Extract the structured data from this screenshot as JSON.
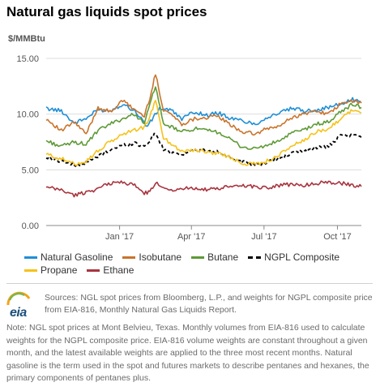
{
  "title": "Natural gas liquids spot prices",
  "unit_label": "$/MMBtu",
  "chart_data": {
    "type": "line",
    "ylim": [
      0,
      15
    ],
    "y_ticks": [
      "0.00",
      "5.00",
      "10.00",
      "15.00"
    ],
    "x_tick_labels": [
      "Jan '17",
      "Apr '17",
      "Jul '17",
      "Oct '17"
    ],
    "x_tick_dates": [
      "2017-01-01",
      "2017-04-01",
      "2017-07-01",
      "2017-10-01"
    ],
    "x_range": [
      "2016-10-01",
      "2017-10-31"
    ],
    "grid": "horizontal",
    "legend_position": "bottom",
    "series": [
      {
        "name": "Natural Gasoline",
        "color": "#1f8fd6",
        "dash": false,
        "x": [
          "2016-10-01",
          "2016-10-20",
          "2016-11-05",
          "2016-11-20",
          "2016-12-05",
          "2016-12-20",
          "2017-01-05",
          "2017-01-20",
          "2017-02-05",
          "2017-02-20",
          "2017-03-05",
          "2017-03-20",
          "2017-04-05",
          "2017-04-20",
          "2017-05-05",
          "2017-05-20",
          "2017-06-05",
          "2017-06-20",
          "2017-07-05",
          "2017-07-20",
          "2017-08-05",
          "2017-08-20",
          "2017-09-05",
          "2017-09-20",
          "2017-10-05",
          "2017-10-20",
          "2017-10-31"
        ],
        "values": [
          10.5,
          10.3,
          9.2,
          9.6,
          10.4,
          10.3,
          10.9,
          10.3,
          8.9,
          10.5,
          10.4,
          9.6,
          10.2,
          9.9,
          10.1,
          9.6,
          9.4,
          9.1,
          9.7,
          10.1,
          10.5,
          10.3,
          10.4,
          10.6,
          10.9,
          11.3,
          11.0
        ]
      },
      {
        "name": "Isobutane",
        "color": "#c9742c",
        "dash": false,
        "x": [
          "2016-10-01",
          "2016-10-20",
          "2016-11-05",
          "2016-11-20",
          "2016-12-05",
          "2016-12-20",
          "2017-01-05",
          "2017-01-20",
          "2017-02-01",
          "2017-02-08",
          "2017-02-15",
          "2017-02-25",
          "2017-03-05",
          "2017-03-20",
          "2017-04-05",
          "2017-04-20",
          "2017-05-05",
          "2017-05-20",
          "2017-06-05",
          "2017-06-20",
          "2017-07-05",
          "2017-07-20",
          "2017-08-05",
          "2017-08-20",
          "2017-09-05",
          "2017-09-20",
          "2017-10-05",
          "2017-10-20",
          "2017-10-31"
        ],
        "values": [
          9.6,
          8.5,
          9.3,
          8.2,
          10.6,
          10.2,
          11.2,
          10.4,
          9.8,
          11.5,
          13.6,
          10.4,
          10.1,
          9.1,
          9.6,
          9.7,
          9.8,
          9.0,
          8.4,
          8.2,
          8.7,
          8.9,
          9.7,
          10.0,
          10.3,
          10.0,
          10.9,
          11.2,
          11.0
        ]
      },
      {
        "name": "Butane",
        "color": "#5e9a37",
        "dash": false,
        "x": [
          "2016-10-01",
          "2016-10-20",
          "2016-11-05",
          "2016-11-20",
          "2016-12-05",
          "2016-12-20",
          "2017-01-05",
          "2017-01-20",
          "2017-02-01",
          "2017-02-08",
          "2017-02-15",
          "2017-02-25",
          "2017-03-05",
          "2017-03-20",
          "2017-04-05",
          "2017-04-20",
          "2017-05-05",
          "2017-05-20",
          "2017-06-05",
          "2017-06-20",
          "2017-07-05",
          "2017-07-20",
          "2017-08-05",
          "2017-08-20",
          "2017-09-05",
          "2017-09-20",
          "2017-10-05",
          "2017-10-20",
          "2017-10-31"
        ],
        "values": [
          7.6,
          7.1,
          7.5,
          7.3,
          8.5,
          9.1,
          9.6,
          10.0,
          9.2,
          10.8,
          12.6,
          9.0,
          8.9,
          8.4,
          8.7,
          8.5,
          8.4,
          7.7,
          7.0,
          6.9,
          7.2,
          7.6,
          8.3,
          8.6,
          9.1,
          9.3,
          10.2,
          10.9,
          10.6
        ]
      },
      {
        "name": "NGPL Composite",
        "color": "#000000",
        "dash": true,
        "x": [
          "2016-10-01",
          "2016-10-20",
          "2016-11-05",
          "2016-11-20",
          "2016-12-05",
          "2016-12-20",
          "2017-01-05",
          "2017-01-20",
          "2017-02-01",
          "2017-02-10",
          "2017-02-15",
          "2017-02-25",
          "2017-03-05",
          "2017-03-20",
          "2017-04-05",
          "2017-04-20",
          "2017-05-05",
          "2017-05-20",
          "2017-06-05",
          "2017-06-20",
          "2017-07-05",
          "2017-07-20",
          "2017-08-05",
          "2017-08-20",
          "2017-09-05",
          "2017-09-20",
          "2017-10-05",
          "2017-10-20",
          "2017-10-31"
        ],
        "values": [
          6.1,
          5.8,
          5.4,
          5.6,
          6.2,
          6.8,
          7.2,
          7.4,
          7.1,
          7.8,
          8.3,
          6.8,
          6.6,
          6.4,
          6.8,
          6.7,
          6.6,
          6.1,
          5.7,
          5.4,
          5.7,
          6.0,
          6.5,
          6.7,
          7.0,
          7.1,
          8.0,
          8.1,
          7.9
        ]
      },
      {
        "name": "Propane",
        "color": "#f5c21a",
        "dash": false,
        "x": [
          "2016-10-01",
          "2016-10-20",
          "2016-11-05",
          "2016-11-20",
          "2016-12-05",
          "2016-12-20",
          "2017-01-05",
          "2017-01-20",
          "2017-02-01",
          "2017-02-08",
          "2017-02-15",
          "2017-02-25",
          "2017-03-05",
          "2017-03-20",
          "2017-04-05",
          "2017-04-20",
          "2017-05-05",
          "2017-05-20",
          "2017-06-05",
          "2017-06-20",
          "2017-07-05",
          "2017-07-20",
          "2017-08-05",
          "2017-08-20",
          "2017-09-05",
          "2017-09-20",
          "2017-10-05",
          "2017-10-20",
          "2017-10-31"
        ],
        "values": [
          6.4,
          6.0,
          5.5,
          5.8,
          6.7,
          7.5,
          8.2,
          8.6,
          8.8,
          9.8,
          11.2,
          7.9,
          7.4,
          6.7,
          6.8,
          6.6,
          6.5,
          6.1,
          5.6,
          5.5,
          5.8,
          6.3,
          7.2,
          7.6,
          8.4,
          8.7,
          9.6,
          10.4,
          10.1
        ]
      },
      {
        "name": "Ethane",
        "color": "#a8343f",
        "dash": false,
        "x": [
          "2016-10-01",
          "2016-10-20",
          "2016-11-05",
          "2016-11-20",
          "2016-12-05",
          "2016-12-20",
          "2017-01-05",
          "2017-01-20",
          "2017-02-01",
          "2017-02-08",
          "2017-02-15",
          "2017-02-25",
          "2017-03-05",
          "2017-03-20",
          "2017-04-05",
          "2017-04-20",
          "2017-05-05",
          "2017-05-20",
          "2017-06-05",
          "2017-06-20",
          "2017-07-05",
          "2017-07-20",
          "2017-08-05",
          "2017-08-20",
          "2017-09-05",
          "2017-09-20",
          "2017-10-05",
          "2017-10-20",
          "2017-10-31"
        ],
        "values": [
          3.4,
          3.2,
          2.7,
          3.0,
          3.3,
          3.8,
          3.9,
          3.6,
          2.9,
          3.0,
          3.8,
          3.5,
          3.2,
          3.3,
          3.4,
          3.2,
          3.3,
          3.5,
          3.6,
          3.5,
          3.4,
          3.6,
          3.7,
          3.6,
          3.8,
          3.9,
          3.8,
          3.6,
          3.5
        ]
      }
    ]
  },
  "sources_text": "Sources: NGL spot prices from Bloomberg, L.P., and weights for NGPL composite price from EIA-816, Monthly Natural Gas Liquids Report.",
  "note_text": "Note: NGL spot prices at Mont Belvieu, Texas. Monthly volumes from EIA-816 used to calculate weights for the NGPL composite price. EIA-816 volume weights are constant throughout a given month, and the latest available weights are applied to the three most recent months. Natural gasoline is the term used in the spot and futures markets to describe pentanes and hexanes, the primary components of pentanes plus.",
  "logo_text": "eia"
}
